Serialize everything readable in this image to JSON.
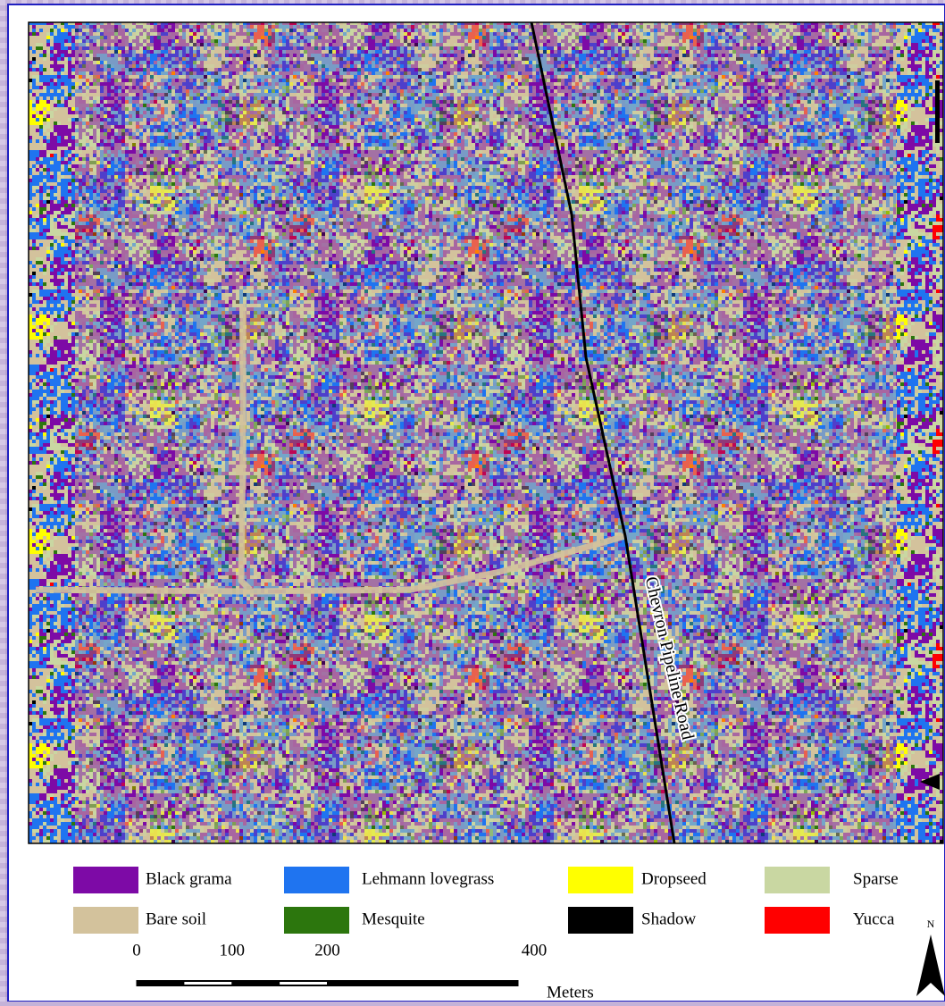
{
  "legend": {
    "items": [
      {
        "label": "Black grama",
        "color": "#7d0aa6"
      },
      {
        "label": "Lehmann lovegrass",
        "color": "#1f74f0"
      },
      {
        "label": "Dropseed",
        "color": "#ffff00"
      },
      {
        "label": "Sparse",
        "color": "#c9d7a2"
      },
      {
        "label": "Bare soil",
        "color": "#d3c29c"
      },
      {
        "label": "Mesquite",
        "color": "#2c760d"
      },
      {
        "label": "Shadow",
        "color": "#000000"
      },
      {
        "label": "Yucca",
        "color": "#ff0000"
      }
    ]
  },
  "map": {
    "road_label": "Chevron Pipeline Road"
  },
  "scale_bar": {
    "ticks": [
      0,
      100,
      200,
      400
    ],
    "unit": "Meters"
  },
  "north_arrow": {
    "label": "N"
  }
}
